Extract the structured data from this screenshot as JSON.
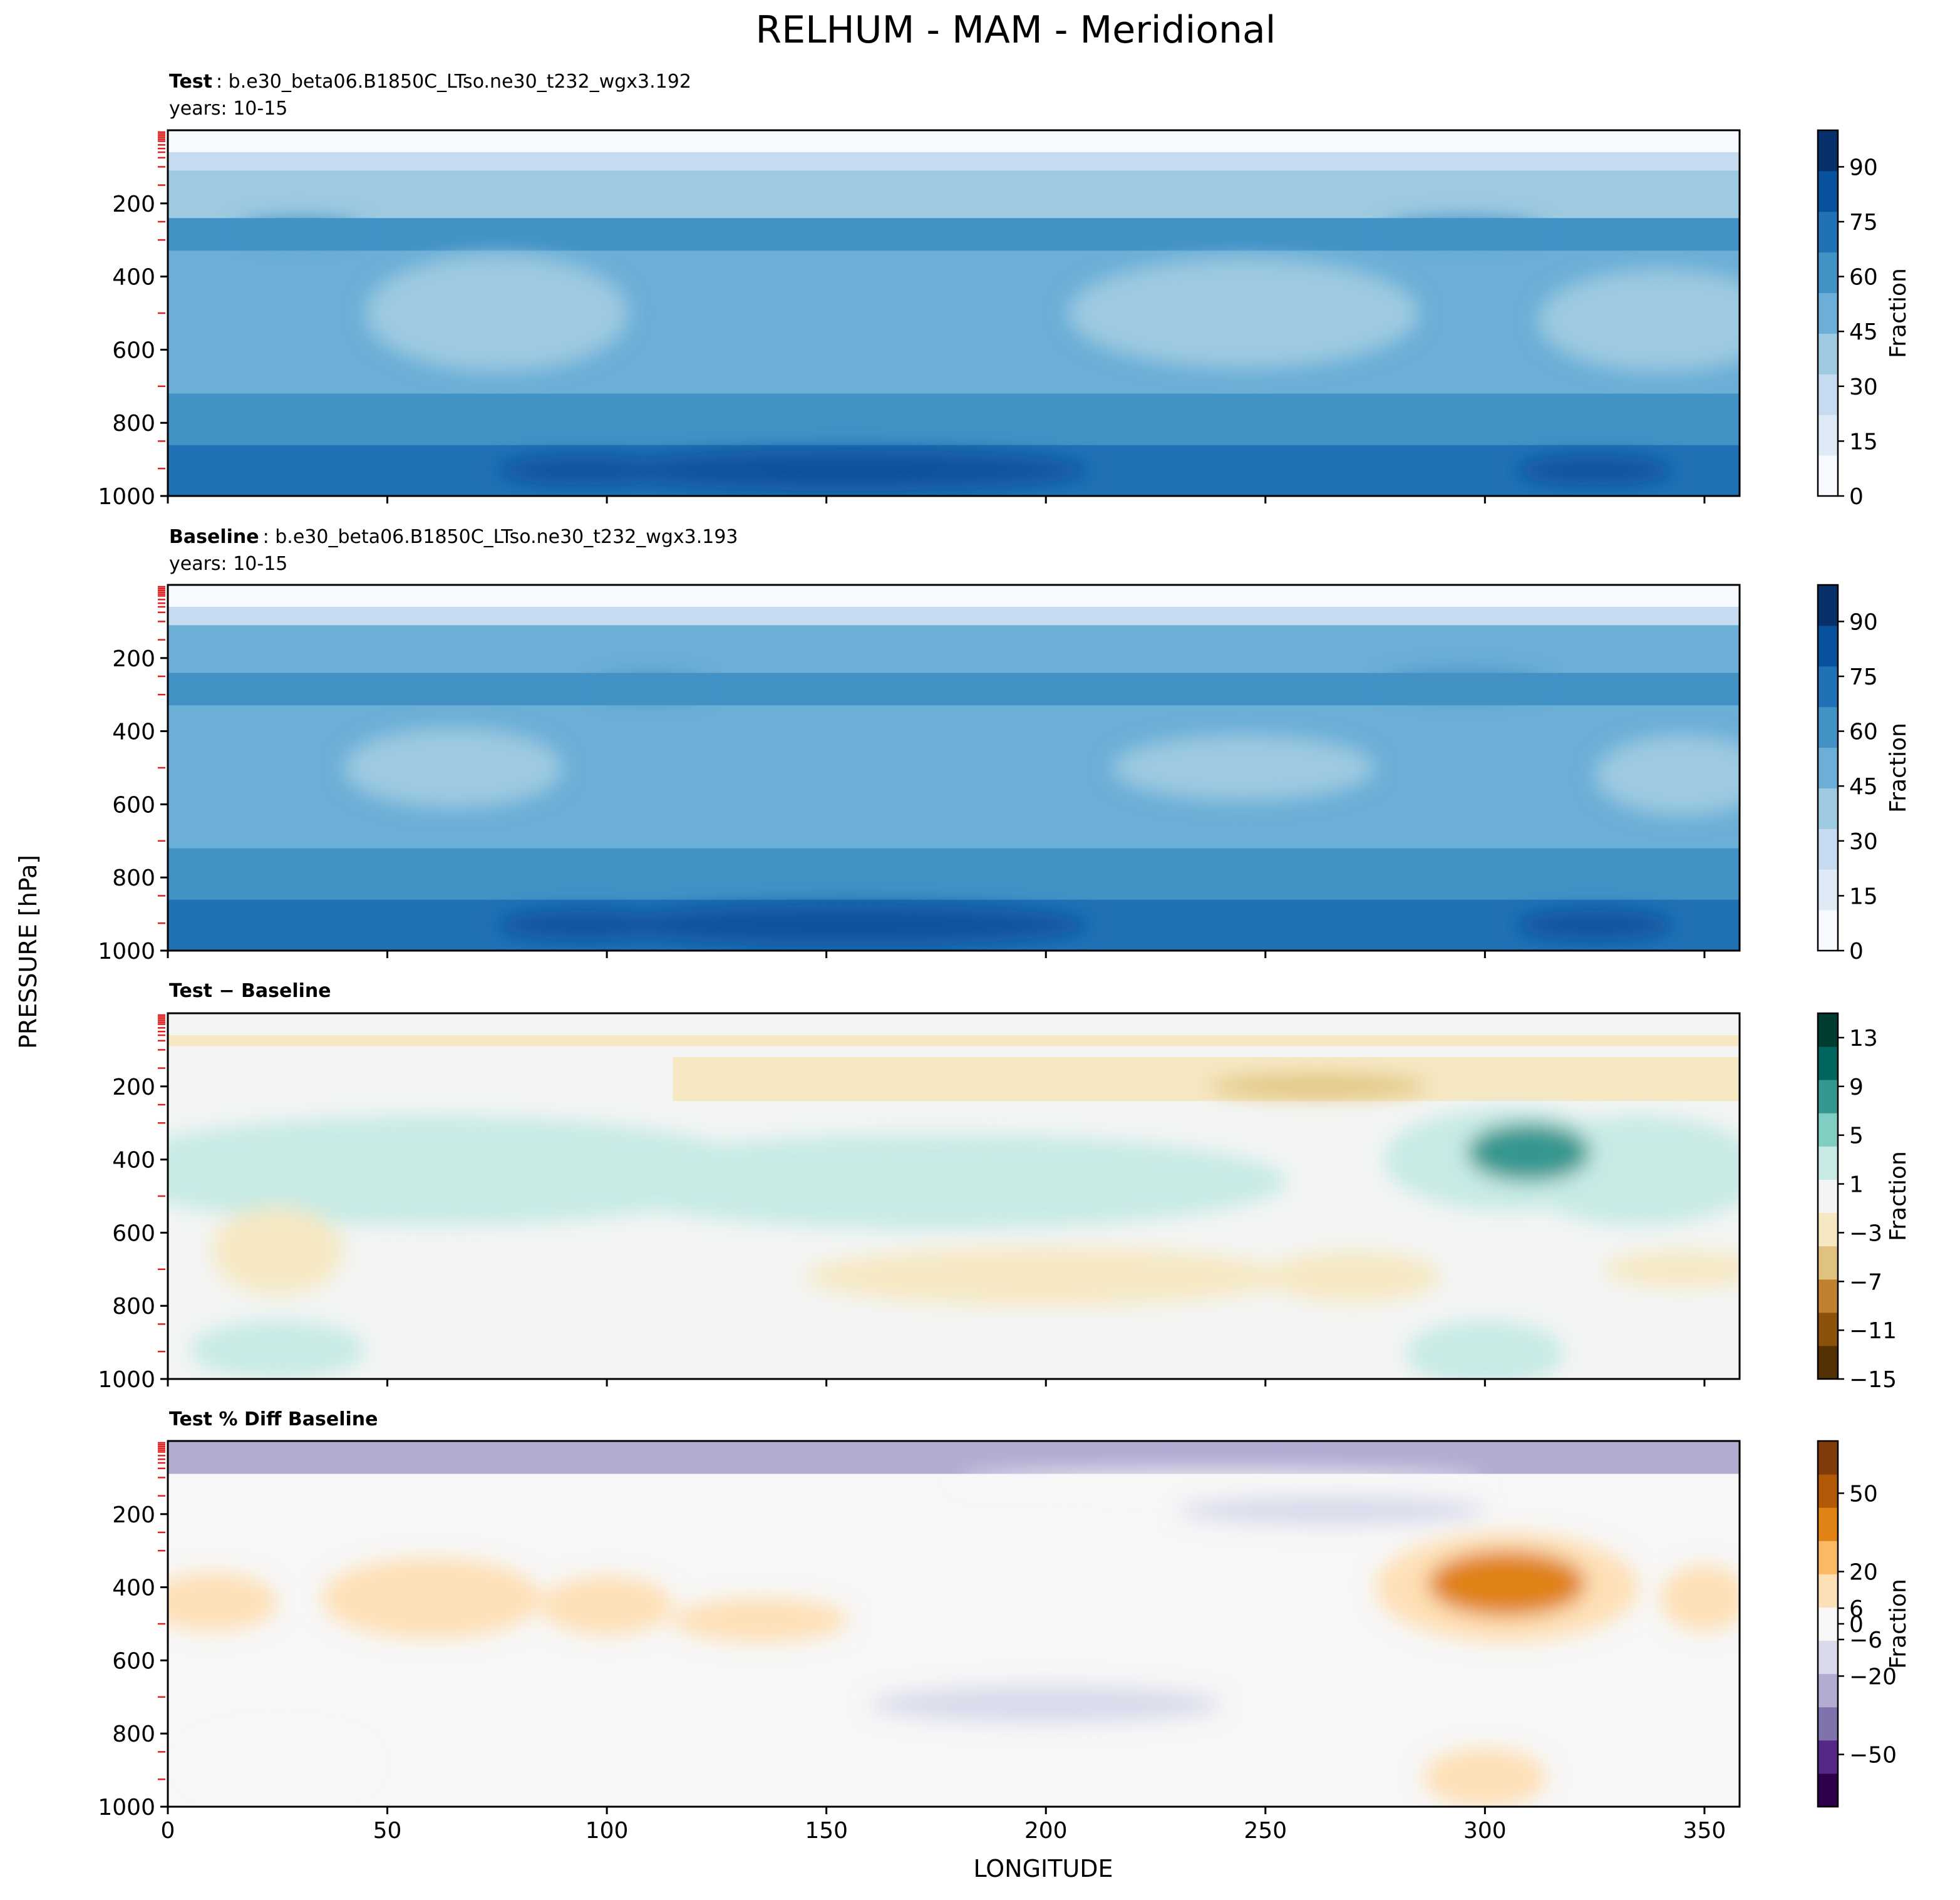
{
  "figure": {
    "title": "RELHUM - MAM - Meridional",
    "ylabel": "PRESSURE [hPa]",
    "xlabel": "LONGITUDE"
  },
  "chart_data": [
    {
      "type": "heatmap",
      "id": "test",
      "title_bold": "Test",
      "title_rest": ": b.e30_beta06.B1850C_LTso.ne30_t232_wgx3.192",
      "subtitle": "years: 10-15",
      "x_ticks": [
        "0",
        "50",
        "100",
        "150",
        "200",
        "250",
        "300",
        "350"
      ],
      "xlim": [
        0,
        358
      ],
      "y_ticks": [
        "200",
        "400",
        "600",
        "800",
        "1000"
      ],
      "ylim": [
        1000,
        0
      ],
      "colorbar_label": "Fraction",
      "colorbar_ticks": [
        "90",
        "75",
        "60",
        "45",
        "30",
        "15",
        "0"
      ],
      "colorbar_range": [
        0,
        100
      ],
      "colormap": [
        "#f7fbff",
        "#deebf7",
        "#c6dbef",
        "#9ecae1",
        "#6baed6",
        "#4292c6",
        "#2171b5",
        "#08519c",
        "#08306b"
      ],
      "fields": [
        {
          "x": [
            0,
            358
          ],
          "y": [
            0,
            30
          ],
          "value": 3
        },
        {
          "x": [
            0,
            358
          ],
          "y": [
            30,
            60
          ],
          "value": 10
        },
        {
          "x": [
            0,
            358
          ],
          "y": [
            60,
            110
          ],
          "value": 25
        },
        {
          "x": [
            0,
            358
          ],
          "y": [
            110,
            240
          ],
          "value": 44
        },
        {
          "x": [
            0,
            358
          ],
          "y": [
            240,
            330
          ],
          "value": 56
        },
        {
          "x": [
            0,
            358
          ],
          "y": [
            330,
            720
          ],
          "value": 47
        },
        {
          "x": [
            0,
            358
          ],
          "y": [
            720,
            860
          ],
          "value": 62
        },
        {
          "x": [
            0,
            358
          ],
          "y": [
            860,
            1000
          ],
          "value": 76
        }
      ],
      "features": [
        {
          "x": 155,
          "y": 930,
          "rx": 55,
          "ry": 55,
          "value": 88
        },
        {
          "x": 95,
          "y": 930,
          "rx": 20,
          "ry": 40,
          "value": 82
        },
        {
          "x": 325,
          "y": 930,
          "rx": 18,
          "ry": 40,
          "value": 84
        },
        {
          "x": 75,
          "y": 500,
          "rx": 30,
          "ry": 160,
          "value": 38
        },
        {
          "x": 245,
          "y": 500,
          "rx": 40,
          "ry": 150,
          "value": 38
        },
        {
          "x": 340,
          "y": 520,
          "rx": 28,
          "ry": 140,
          "value": 38
        },
        {
          "x": 295,
          "y": 270,
          "rx": 18,
          "ry": 30,
          "value": 62
        },
        {
          "x": 30,
          "y": 270,
          "rx": 14,
          "ry": 28,
          "value": 60
        }
      ]
    },
    {
      "type": "heatmap",
      "id": "baseline",
      "title_bold": "Baseline",
      "title_rest": ": b.e30_beta06.B1850C_LTso.ne30_t232_wgx3.193",
      "subtitle": "years: 10-15",
      "x_ticks": [
        "0",
        "50",
        "100",
        "150",
        "200",
        "250",
        "300",
        "350"
      ],
      "xlim": [
        0,
        358
      ],
      "y_ticks": [
        "200",
        "400",
        "600",
        "800",
        "1000"
      ],
      "ylim": [
        1000,
        0
      ],
      "colorbar_label": "Fraction",
      "colorbar_ticks": [
        "90",
        "75",
        "60",
        "45",
        "30",
        "15",
        "0"
      ],
      "colorbar_range": [
        0,
        100
      ],
      "colormap": [
        "#f7fbff",
        "#deebf7",
        "#c6dbef",
        "#9ecae1",
        "#6baed6",
        "#4292c6",
        "#2171b5",
        "#08519c",
        "#08306b"
      ],
      "fields": [
        {
          "x": [
            0,
            358
          ],
          "y": [
            0,
            30
          ],
          "value": 3
        },
        {
          "x": [
            0,
            358
          ],
          "y": [
            30,
            60
          ],
          "value": 10
        },
        {
          "x": [
            0,
            358
          ],
          "y": [
            60,
            110
          ],
          "value": 26
        },
        {
          "x": [
            0,
            358
          ],
          "y": [
            110,
            240
          ],
          "value": 46
        },
        {
          "x": [
            0,
            358
          ],
          "y": [
            240,
            330
          ],
          "value": 57
        },
        {
          "x": [
            0,
            358
          ],
          "y": [
            330,
            720
          ],
          "value": 50
        },
        {
          "x": [
            0,
            358
          ],
          "y": [
            720,
            860
          ],
          "value": 63
        },
        {
          "x": [
            0,
            358
          ],
          "y": [
            860,
            1000
          ],
          "value": 77
        }
      ],
      "features": [
        {
          "x": 155,
          "y": 930,
          "rx": 55,
          "ry": 55,
          "value": 88
        },
        {
          "x": 95,
          "y": 930,
          "rx": 20,
          "ry": 40,
          "value": 82
        },
        {
          "x": 325,
          "y": 930,
          "rx": 18,
          "ry": 40,
          "value": 84
        },
        {
          "x": 65,
          "y": 500,
          "rx": 25,
          "ry": 110,
          "value": 40
        },
        {
          "x": 245,
          "y": 500,
          "rx": 30,
          "ry": 90,
          "value": 40
        },
        {
          "x": 345,
          "y": 520,
          "rx": 20,
          "ry": 110,
          "value": 40
        },
        {
          "x": 295,
          "y": 270,
          "rx": 18,
          "ry": 30,
          "value": 62
        },
        {
          "x": 110,
          "y": 280,
          "rx": 12,
          "ry": 28,
          "value": 62
        }
      ]
    },
    {
      "type": "heatmap",
      "id": "diff",
      "title_bold": "Test − Baseline",
      "title_rest": "",
      "subtitle": "",
      "x_ticks": [
        "0",
        "50",
        "100",
        "150",
        "200",
        "250",
        "300",
        "350"
      ],
      "xlim": [
        0,
        358
      ],
      "y_ticks": [
        "200",
        "400",
        "600",
        "800",
        "1000"
      ],
      "ylim": [
        1000,
        0
      ],
      "colorbar_label": "Fraction",
      "colorbar_ticks": [
        "13",
        "9",
        "5",
        "1",
        "−3",
        "−7",
        "−11",
        "−15"
      ],
      "colorbar_range": [
        -15,
        15
      ],
      "colormap": [
        "#543005",
        "#8c510a",
        "#bf812d",
        "#dfc27d",
        "#f6e8c3",
        "#f3f5f4",
        "#c7eae5",
        "#80cdc1",
        "#35978f",
        "#01665e",
        "#003c30"
      ],
      "fields": [
        {
          "x": [
            0,
            358
          ],
          "y": [
            0,
            1000
          ],
          "value": 0
        },
        {
          "x": [
            0,
            358
          ],
          "y": [
            60,
            90
          ],
          "value": -2
        },
        {
          "x": [
            115,
            358
          ],
          "y": [
            120,
            240
          ],
          "value": -2
        }
      ],
      "features": [
        {
          "x": 60,
          "y": 430,
          "rx": 75,
          "ry": 150,
          "value": 2
        },
        {
          "x": 175,
          "y": 460,
          "rx": 80,
          "ry": 130,
          "value": 2
        },
        {
          "x": 335,
          "y": 430,
          "rx": 28,
          "ry": 150,
          "value": 2
        },
        {
          "x": 305,
          "y": 400,
          "rx": 28,
          "ry": 140,
          "value": 4
        },
        {
          "x": 310,
          "y": 380,
          "rx": 14,
          "ry": 80,
          "value": 8
        },
        {
          "x": 55,
          "y": 440,
          "rx": 14,
          "ry": 70,
          "value": 4
        },
        {
          "x": 100,
          "y": 440,
          "rx": 12,
          "ry": 60,
          "value": 4
        },
        {
          "x": 135,
          "y": 500,
          "rx": 18,
          "ry": 50,
          "value": 4
        },
        {
          "x": 300,
          "y": 930,
          "rx": 18,
          "ry": 90,
          "value": 2
        },
        {
          "x": 300,
          "y": 910,
          "rx": 8,
          "ry": 40,
          "value": 4
        },
        {
          "x": 25,
          "y": 920,
          "rx": 20,
          "ry": 80,
          "value": 2
        },
        {
          "x": 262,
          "y": 200,
          "rx": 25,
          "ry": 30,
          "value": -5
        },
        {
          "x": 25,
          "y": 650,
          "rx": 15,
          "ry": 120,
          "value": -2
        },
        {
          "x": 200,
          "y": 720,
          "rx": 55,
          "ry": 80,
          "value": -2
        },
        {
          "x": 270,
          "y": 720,
          "rx": 20,
          "ry": 70,
          "value": -2
        },
        {
          "x": 345,
          "y": 700,
          "rx": 18,
          "ry": 50,
          "value": -2
        }
      ]
    },
    {
      "type": "heatmap",
      "id": "pctdiff",
      "title_bold": "Test % Diff Baseline",
      "title_rest": "",
      "subtitle": "",
      "x_ticks": [
        "0",
        "50",
        "100",
        "150",
        "200",
        "250",
        "300",
        "350"
      ],
      "xlim": [
        0,
        358
      ],
      "y_ticks": [
        "200",
        "400",
        "600",
        "800",
        "1000"
      ],
      "ylim": [
        1000,
        0
      ],
      "colorbar_label": "Fraction",
      "colorbar_ticks": [
        "50",
        "20",
        "6",
        "0",
        "−6",
        "−20",
        "−50"
      ],
      "colorbar_range": [
        -70,
        70
      ],
      "colormap": [
        "#2d004b",
        "#542788",
        "#8073ac",
        "#b2abd2",
        "#d8daeb",
        "#f7f7f7",
        "#fee0b6",
        "#fdb863",
        "#e08214",
        "#b35806",
        "#7f3b08"
      ],
      "fields": [
        {
          "x": [
            0,
            358
          ],
          "y": [
            0,
            1000
          ],
          "value": 1
        },
        {
          "x": [
            0,
            358
          ],
          "y": [
            0,
            90
          ],
          "value": -20
        },
        {
          "x": [
            0,
            358
          ],
          "y": [
            90,
            140
          ],
          "value": -4
        },
        {
          "x": [
            0,
            358
          ],
          "y": [
            300,
            560
          ],
          "value": 5
        },
        {
          "x": [
            0,
            358
          ],
          "y": [
            600,
            760
          ],
          "value": -3
        }
      ],
      "features": [
        {
          "x": 60,
          "y": 430,
          "rx": 25,
          "ry": 110,
          "value": 14
        },
        {
          "x": 100,
          "y": 450,
          "rx": 15,
          "ry": 80,
          "value": 14
        },
        {
          "x": 135,
          "y": 490,
          "rx": 20,
          "ry": 60,
          "value": 14
        },
        {
          "x": 10,
          "y": 440,
          "rx": 15,
          "ry": 80,
          "value": 14
        },
        {
          "x": 350,
          "y": 430,
          "rx": 10,
          "ry": 90,
          "value": 14
        },
        {
          "x": 305,
          "y": 400,
          "rx": 30,
          "ry": 150,
          "value": 14
        },
        {
          "x": 305,
          "y": 390,
          "rx": 18,
          "ry": 90,
          "value": 35
        },
        {
          "x": 300,
          "y": 920,
          "rx": 14,
          "ry": 80,
          "value": 14
        },
        {
          "x": 265,
          "y": 190,
          "rx": 35,
          "ry": 40,
          "value": -12
        },
        {
          "x": 240,
          "y": 100,
          "rx": 60,
          "ry": 20,
          "value": 4
        },
        {
          "x": 200,
          "y": 720,
          "rx": 40,
          "ry": 50,
          "value": -9
        },
        {
          "x": 25,
          "y": 880,
          "rx": 20,
          "ry": 80,
          "value": 5
        }
      ]
    }
  ]
}
